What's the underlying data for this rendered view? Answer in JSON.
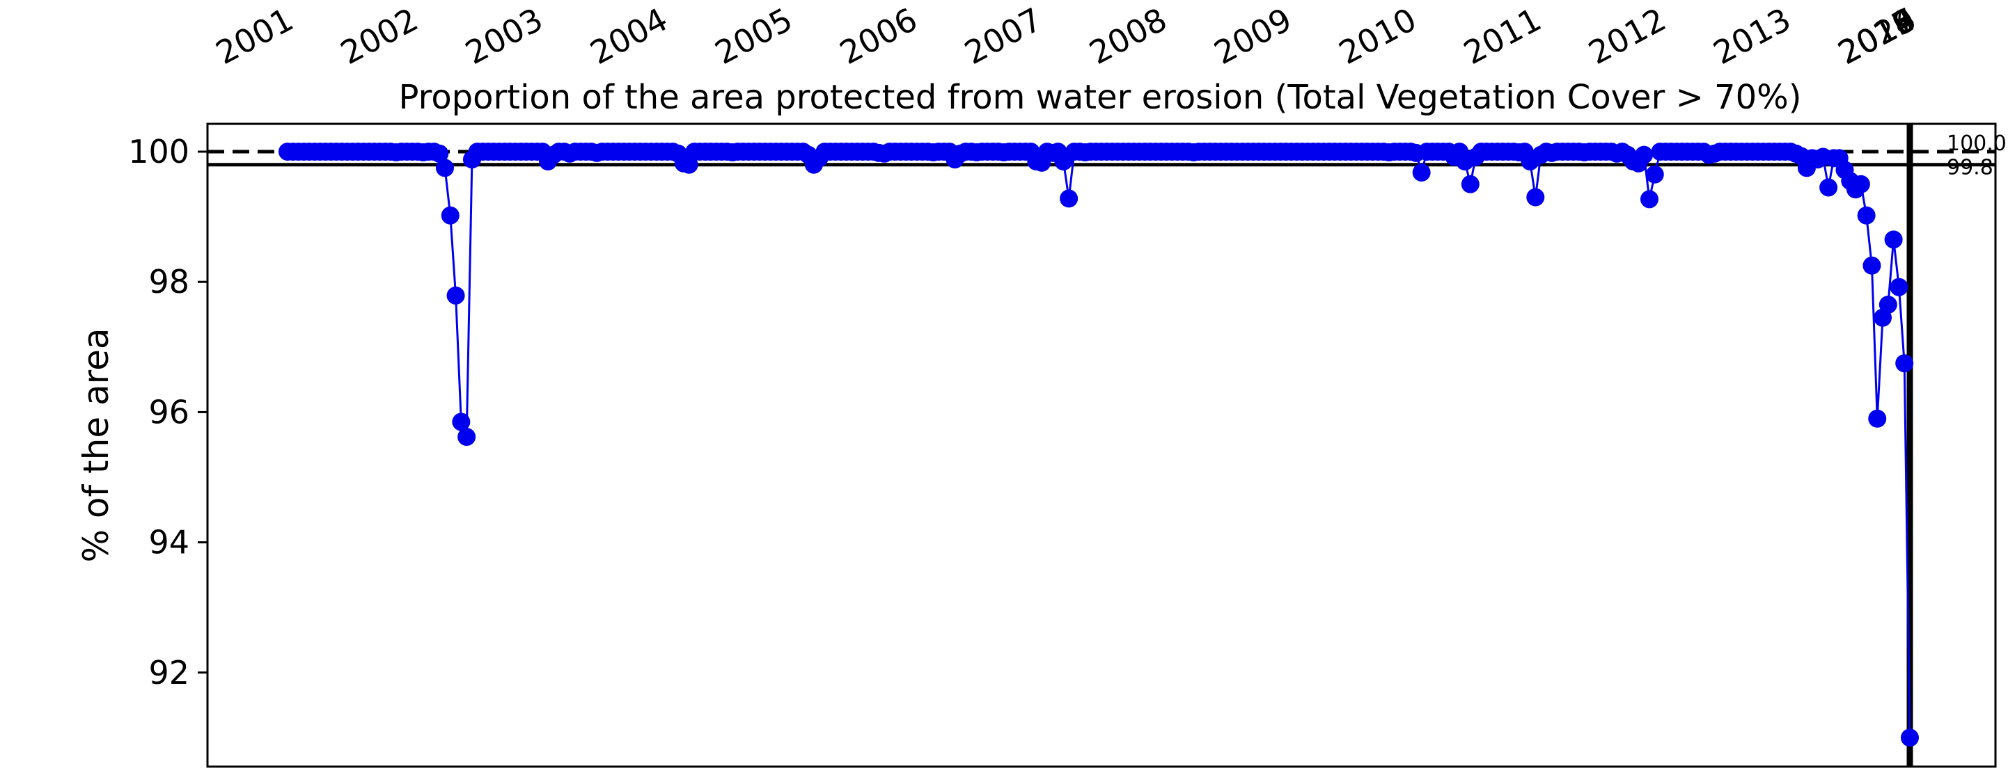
{
  "chart_data": {
    "type": "line",
    "title": "Proportion of the area protected from water erosion (Total Vegetation Cover > 70%)",
    "xlabel": "",
    "ylabel": "% of the area",
    "ylim": [
      90.5,
      100.4
    ],
    "yticks": [
      92,
      94,
      96,
      98,
      100
    ],
    "year_ticks": [
      "2001",
      "2002",
      "2003",
      "2004",
      "2005",
      "2006",
      "2007",
      "2008",
      "2009",
      "2010",
      "2011",
      "2012",
      "2013",
      "2014",
      "2015",
      "2016",
      "2017",
      "2018",
      "2019",
      "2020"
    ],
    "reference_lines": [
      {
        "value": 100.0,
        "label": "100.0",
        "style": "dashed"
      },
      {
        "value": 99.8,
        "label": "99.8",
        "style": "solid"
      }
    ],
    "grid": false,
    "series_color": "#0000ee",
    "x_unit": "16-day composite period",
    "periods_per_year": 23,
    "start_year": 2001,
    "series": [
      {
        "values": [
          100.0,
          100.0,
          100.0,
          100.0,
          100.0,
          100.0,
          100.0,
          100.0,
          100.0,
          100.0,
          100.0,
          100.0,
          100.0,
          100.0,
          100.0,
          100.0,
          100.0,
          100.0,
          100.0,
          100.0,
          99.99,
          100.0,
          100.0,
          100.0,
          100.0,
          99.99,
          100.0,
          100.0,
          99.97,
          99.75,
          99.02,
          97.79,
          95.85,
          95.62,
          99.88,
          100.0,
          100.0,
          100.0,
          100.0,
          100.0,
          100.0,
          100.0,
          100.0,
          100.0,
          100.0,
          100.0,
          100.0,
          100.0,
          99.85,
          99.95,
          100.0,
          100.0,
          99.97,
          100.0,
          100.0,
          100.0,
          100.0,
          99.98,
          100.0,
          100.0,
          100.0,
          100.0,
          100.0,
          100.0,
          100.0,
          100.0,
          100.0,
          100.0,
          100.0,
          100.0,
          100.0,
          100.0,
          99.97,
          99.82,
          99.8,
          100.0,
          100.0,
          100.0,
          100.0,
          100.0,
          100.0,
          100.0,
          99.99,
          100.0,
          100.0,
          100.0,
          100.0,
          100.0,
          100.0,
          100.0,
          100.0,
          100.0,
          100.0,
          100.0,
          100.0,
          100.0,
          99.95,
          99.8,
          99.9,
          100.0,
          100.0,
          100.0,
          100.0,
          100.0,
          100.0,
          100.0,
          100.0,
          100.0,
          100.0,
          99.98,
          99.97,
          100.0,
          100.0,
          100.0,
          100.0,
          100.0,
          100.0,
          100.0,
          100.0,
          99.99,
          100.0,
          100.0,
          100.0,
          99.88,
          99.97,
          100.0,
          100.0,
          99.99,
          100.0,
          100.0,
          100.0,
          100.0,
          99.99,
          100.0,
          100.0,
          100.0,
          100.0,
          100.0,
          99.85,
          99.83,
          100.0,
          99.98,
          100.0,
          99.85,
          99.28,
          100.0,
          100.0,
          99.99,
          100.0,
          100.0,
          100.0,
          100.0,
          100.0,
          100.0,
          100.0,
          100.0,
          100.0,
          100.0,
          100.0,
          100.0,
          100.0,
          100.0,
          100.0,
          100.0,
          100.0,
          100.0,
          100.0,
          99.99,
          100.0,
          100.0,
          100.0,
          100.0,
          100.0,
          100.0,
          100.0,
          100.0,
          100.0,
          100.0,
          100.0,
          100.0,
          100.0,
          100.0,
          100.0,
          100.0,
          100.0,
          100.0,
          100.0,
          100.0,
          100.0,
          100.0,
          100.0,
          100.0,
          100.0,
          100.0,
          100.0,
          100.0,
          100.0,
          100.0,
          100.0,
          100.0,
          100.0,
          100.0,
          100.0,
          99.99,
          100.0,
          100.0,
          100.0,
          100.0,
          99.98,
          99.68,
          100.0,
          100.0,
          100.0,
          100.0,
          100.0,
          99.92,
          100.0,
          99.85,
          99.5,
          99.92,
          100.0,
          100.0,
          100.0,
          100.0,
          100.0,
          100.0,
          100.0,
          99.99,
          100.0,
          99.85,
          99.3,
          99.95,
          100.0,
          99.98,
          100.0,
          100.0,
          100.0,
          100.0,
          100.0,
          99.99,
          100.0,
          100.0,
          100.0,
          100.0,
          100.0,
          99.97,
          100.0,
          99.95,
          99.85,
          99.82,
          99.95,
          99.27,
          99.65,
          100.0,
          100.0,
          100.0,
          100.0,
          100.0,
          100.0,
          100.0,
          100.0,
          100.0,
          99.95,
          99.97,
          100.0,
          100.0,
          100.0,
          100.0,
          100.0,
          100.0,
          100.0,
          100.0,
          100.0,
          100.0,
          100.0,
          100.0,
          100.0,
          100.0,
          99.97,
          99.93,
          99.75,
          99.9,
          99.88,
          99.92,
          99.45,
          99.9,
          99.9,
          99.72,
          99.55,
          99.42,
          99.5,
          99.02,
          98.25,
          95.9,
          97.45,
          97.65,
          98.65,
          97.92,
          96.75,
          91.0
        ]
      }
    ]
  }
}
